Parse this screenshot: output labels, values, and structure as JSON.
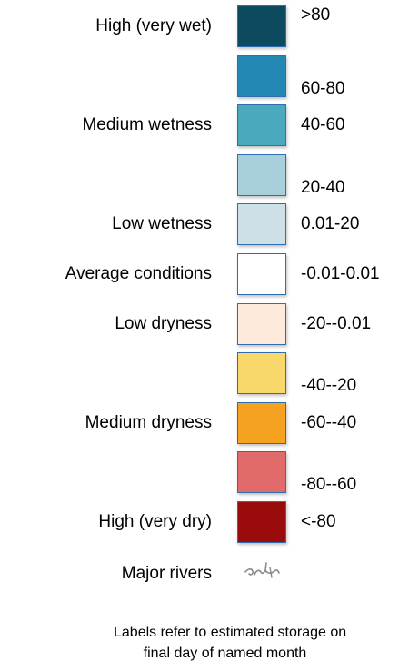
{
  "legend": {
    "rows": [
      {
        "category": "High (very wet)",
        "range": ">80",
        "color": "#0d4a5e",
        "range_pos": "top"
      },
      {
        "category": "",
        "range": "60-80",
        "color": "#2287b3",
        "range_pos": "bottom"
      },
      {
        "category": "Medium wetness",
        "range": "40-60",
        "color": "#4ba9bd",
        "range_pos": "mid"
      },
      {
        "category": "",
        "range": "20-40",
        "color": "#a7cfdc",
        "range_pos": "bottom"
      },
      {
        "category": "Low wetness",
        "range": "0.01-20",
        "color": "#cde0e8",
        "range_pos": "mid"
      },
      {
        "category": "Average conditions",
        "range": "-0.01-0.01",
        "color": "#ffffff",
        "range_pos": "mid"
      },
      {
        "category": "Low dryness",
        "range": "-20--0.01",
        "color": "#fdeadb",
        "range_pos": "mid"
      },
      {
        "category": "",
        "range": "-40--20",
        "color": "#f8d86a",
        "range_pos": "bottom"
      },
      {
        "category": "Medium dryness",
        "range": "-60--40",
        "color": "#f6a221",
        "range_pos": "mid"
      },
      {
        "category": "",
        "range": "-80--60",
        "color": "#e06b6a",
        "range_pos": "bottom"
      },
      {
        "category": "High (very dry)",
        "range": "<-80",
        "color": "#9a0b0c",
        "range_pos": "mid"
      }
    ],
    "rivers_label": "Major rivers",
    "rivers_icon": "river-icon"
  },
  "footnote": {
    "line1": "Labels refer to estimated storage on",
    "line2": "final day of named month"
  }
}
